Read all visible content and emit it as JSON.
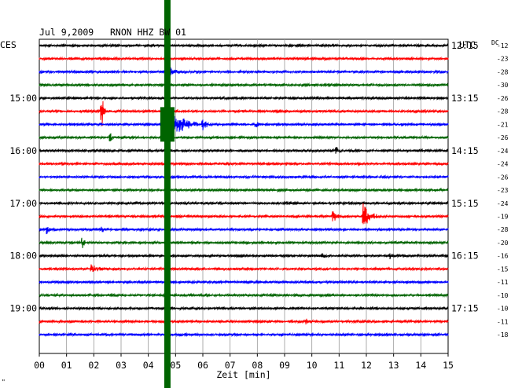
{
  "chart_data": {
    "type": "line",
    "title": "Jul 9,2009   RNON HHZ BW 01",
    "left_tz": "CES",
    "right_tz": "UTC",
    "dc_label": "DC",
    "xlabel": "Zeit [min]",
    "x_ticks": [
      "00",
      "01",
      "02",
      "03",
      "04",
      "05",
      "06",
      "07",
      "08",
      "09",
      "10",
      "11",
      "12",
      "13",
      "14",
      "15"
    ],
    "xlim": [
      0,
      15
    ],
    "left_hour_labels": [
      {
        "row": 4,
        "text": "15:00"
      },
      {
        "row": 8,
        "text": "16:00"
      },
      {
        "row": 12,
        "text": "17:00"
      },
      {
        "row": 16,
        "text": "18:00"
      },
      {
        "row": 20,
        "text": "19:00"
      }
    ],
    "right_hour_labels": [
      {
        "row": 0,
        "text": "12:15"
      },
      {
        "row": 4,
        "text": "13:15"
      },
      {
        "row": 8,
        "text": "14:15"
      },
      {
        "row": 12,
        "text": "15:15"
      },
      {
        "row": 16,
        "text": "16:15"
      },
      {
        "row": 20,
        "text": "17:15"
      }
    ],
    "dc_offsets": [
      "-12",
      "-23",
      "-28",
      "-30",
      "-26",
      "-28",
      "-21",
      "-26",
      "-24",
      "-24",
      "-26",
      "-23",
      "-24",
      "-19",
      "-28",
      "-20",
      "-16",
      "-15",
      "-11",
      "-10",
      "-10",
      "-11",
      "-18"
    ],
    "trace_colors": [
      "#000000",
      "#ff0000",
      "#0000ff",
      "#006400"
    ],
    "events": [
      {
        "row": 2,
        "x": 4.8,
        "amp": 6,
        "dur": 0.3
      },
      {
        "row": 5,
        "x": 2.3,
        "amp": 20,
        "dur": 0.15
      },
      {
        "row": 6,
        "x": 4.8,
        "amp": 22,
        "dur": 1.0
      },
      {
        "row": 6,
        "x": 6.0,
        "amp": 8,
        "dur": 0.3
      },
      {
        "row": 6,
        "x": 7.9,
        "amp": 5,
        "dur": 0.3
      },
      {
        "row": 7,
        "x": 2.6,
        "amp": 6,
        "dur": 0.15
      },
      {
        "row": 8,
        "x": 10.9,
        "amp": 6,
        "dur": 0.15
      },
      {
        "row": 13,
        "x": 10.8,
        "amp": 8,
        "dur": 0.2
      },
      {
        "row": 13,
        "x": 11.9,
        "amp": 16,
        "dur": 0.5
      },
      {
        "row": 14,
        "x": 0.3,
        "amp": 8,
        "dur": 0.15
      },
      {
        "row": 14,
        "x": 2.3,
        "amp": 5,
        "dur": 0.15
      },
      {
        "row": 15,
        "x": 1.6,
        "amp": 6,
        "dur": 0.15
      },
      {
        "row": 16,
        "x": 10.4,
        "amp": 3,
        "dur": 0.2
      },
      {
        "row": 16,
        "x": 12.9,
        "amp": 3,
        "dur": 0.2
      },
      {
        "row": 17,
        "x": 1.9,
        "amp": 5,
        "dur": 0.6
      },
      {
        "row": 21,
        "x": 9.8,
        "amp": 3,
        "dur": 0.2
      }
    ],
    "saturated_column_x": 4.7,
    "corner_mark": "\""
  }
}
